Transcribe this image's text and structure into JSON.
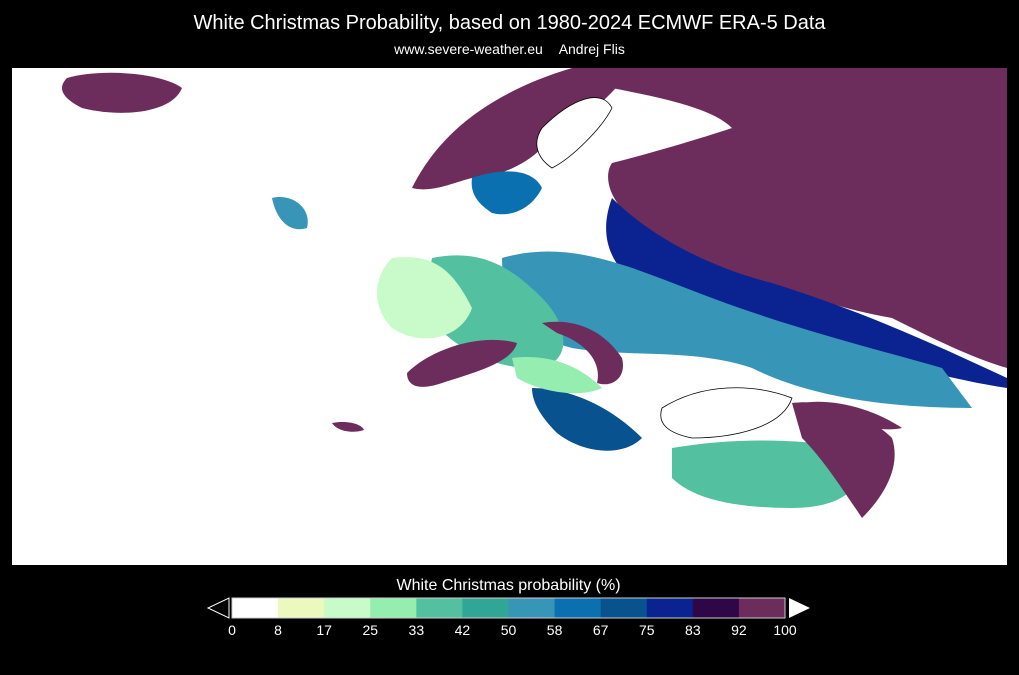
{
  "header": {
    "title": "White Christmas Probability, based on 1980-2024 ECMWF ERA-5 Data",
    "website": "www.severe-weather.eu",
    "author": "Andrej Flis"
  },
  "map": {
    "region": "Europe",
    "variable": "White Christmas probability",
    "ocean_color": "#ffffff",
    "coastline_color": "#000000"
  },
  "colorbar": {
    "title": "White Christmas probability (%)",
    "ticks": [
      "0",
      "8",
      "17",
      "25",
      "33",
      "42",
      "50",
      "58",
      "67",
      "75",
      "83",
      "92",
      "100"
    ],
    "bins": [
      {
        "range": [
          0,
          8
        ],
        "color": "#ffffff"
      },
      {
        "range": [
          8,
          17
        ],
        "color": "#edf8bf"
      },
      {
        "range": [
          17,
          25
        ],
        "color": "#c9fbca"
      },
      {
        "range": [
          25,
          33
        ],
        "color": "#96edb0"
      },
      {
        "range": [
          33,
          42
        ],
        "color": "#53c0a0"
      },
      {
        "range": [
          42,
          50
        ],
        "color": "#30a796"
      },
      {
        "range": [
          50,
          58
        ],
        "color": "#3795b8"
      },
      {
        "range": [
          58,
          67
        ],
        "color": "#0b70b0"
      },
      {
        "range": [
          67,
          75
        ],
        "color": "#08528f"
      },
      {
        "range": [
          75,
          83
        ],
        "color": "#0b2390"
      },
      {
        "range": [
          83,
          92
        ],
        "color": "#2d0747"
      },
      {
        "range": [
          92,
          100
        ],
        "color": "#6c2d5c"
      }
    ],
    "extend_min_color": "#000000",
    "extend_max_color": "#ffffff"
  }
}
